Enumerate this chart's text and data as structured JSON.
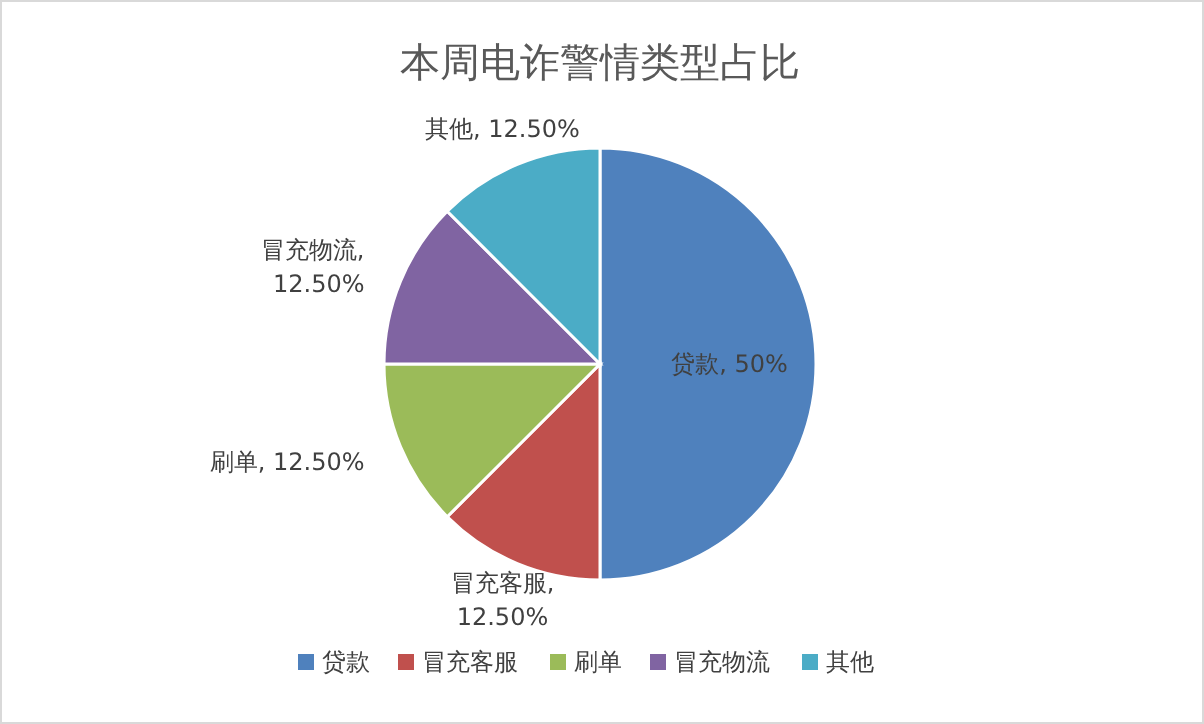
{
  "chart_data": {
    "type": "pie",
    "title": "本周电诈警情类型占比",
    "categories": [
      "贷款",
      "冒充客服",
      "刷单",
      "冒充物流",
      "其他"
    ],
    "values": [
      50,
      12.5,
      12.5,
      12.5,
      12.5
    ],
    "value_labels": [
      "贷款, 50%",
      "冒充客服, 12.50%",
      "刷单, 12.50%",
      "冒充物流, 12.50%",
      "其他, 12.50%"
    ],
    "colors": [
      "#4f81bd",
      "#c0504d",
      "#9bbb59",
      "#8064a2",
      "#4bacc6"
    ],
    "legend": "bottom"
  }
}
